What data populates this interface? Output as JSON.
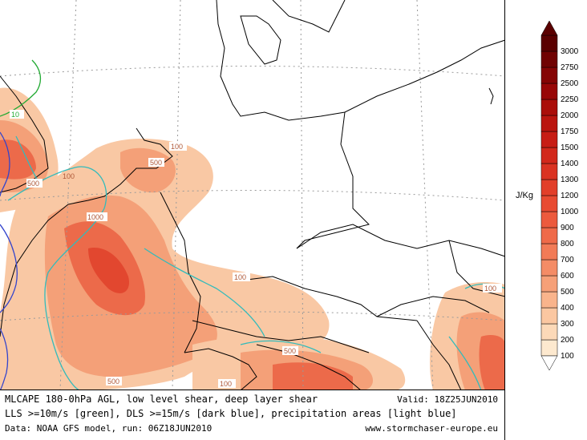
{
  "footer": {
    "title": "MLCAPE 180-0hPa AGL, low level shear, deep layer shear",
    "valid": "Valid: 18Z25JUN2010",
    "legend_line": "LLS >=10m/s [green], DLS >=15m/s [dark blue], precipitation areas [light blue]",
    "data_line": "Data: NOAA GFS model, run: 06Z18JUN2010",
    "website": "www.stormchaser-europe.eu"
  },
  "colorbar": {
    "unit": "J/Kg",
    "ticks": [
      "100",
      "200",
      "300",
      "400",
      "500",
      "600",
      "700",
      "800",
      "900",
      "1000",
      "1200",
      "1300",
      "1400",
      "1500",
      "1750",
      "2000",
      "2250",
      "2500",
      "2750",
      "3000"
    ],
    "colors": [
      "#fde9cf",
      "#fcd9b8",
      "#fbc7a1",
      "#f9b48c",
      "#f6a078",
      "#f48c66",
      "#f27b57",
      "#ef6a49",
      "#ec5a3d",
      "#e84b32",
      "#e23f2a",
      "#da3322",
      "#d2281b",
      "#c71d15",
      "#ba150f",
      "#aa0e0a",
      "#980707",
      "#850404",
      "#700202",
      "#5a0000"
    ]
  },
  "map": {
    "contour_labels": [
      "10",
      "100",
      "500",
      "1000",
      "100",
      "500",
      "100",
      "500",
      "100",
      "500",
      "100",
      "100",
      "500"
    ],
    "colors": {
      "cape_light": "#f9c8a4",
      "cape_mid": "#f4a078",
      "cape_high": "#ec6a4a",
      "cape_peak": "#e2472f",
      "low_level_shear": "#22aa33",
      "deep_layer_shear": "#3344cc",
      "precip": "#33bbbb",
      "coast": "#000000",
      "grid": "#9a9a9a"
    }
  }
}
